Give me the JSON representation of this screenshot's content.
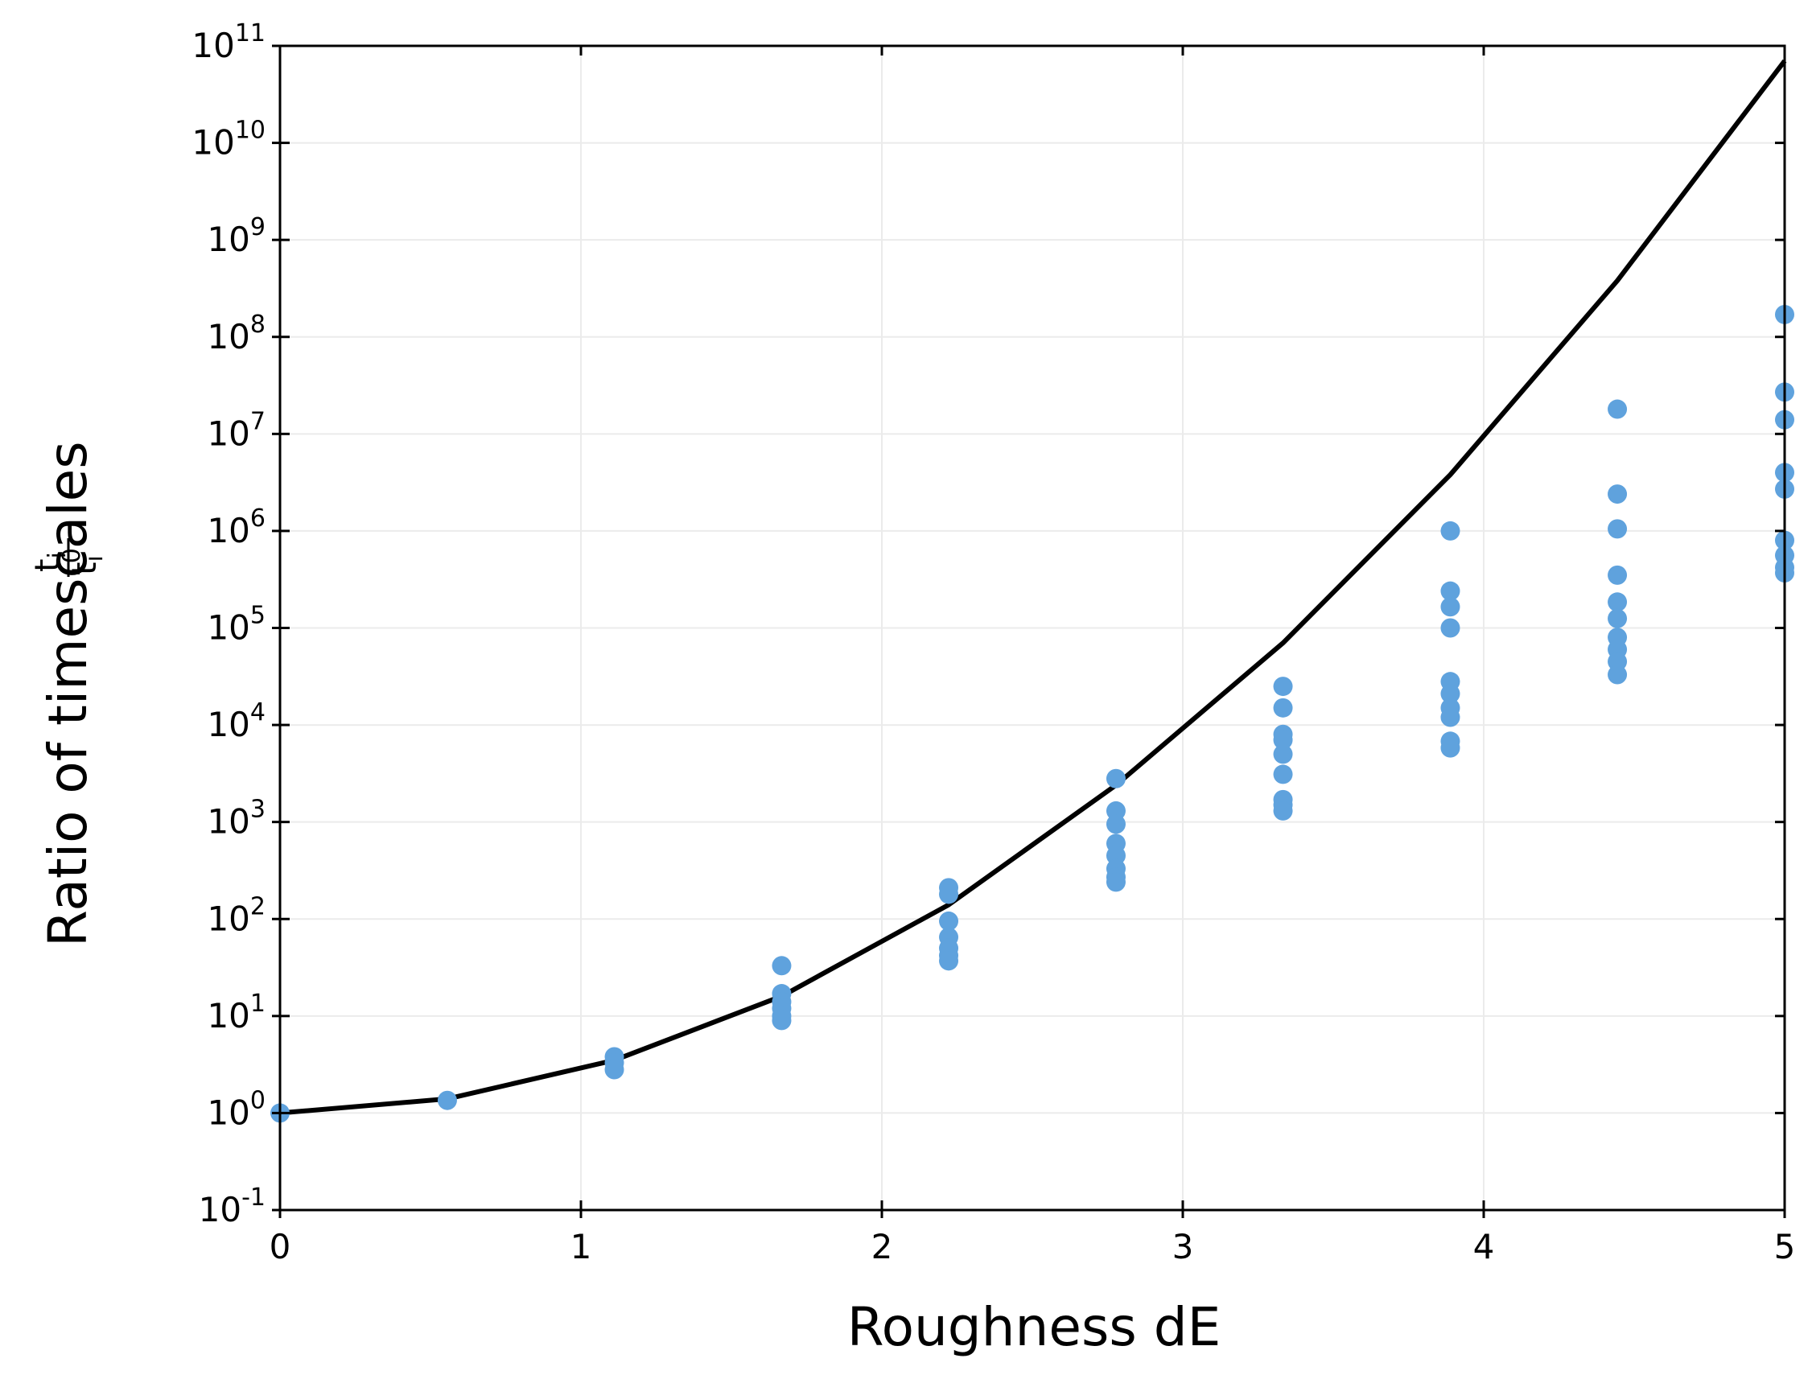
{
  "chart_data": {
    "type": "scatter",
    "xlabel": "Roughness dE",
    "ylabel": "Ratio of timescales",
    "ylabel_fraction": {
      "numerator": "t",
      "numerator_sub": "i",
      "denominator": "t",
      "denominator_sub": "i",
      "denominator_sup": "0"
    },
    "xlim": [
      0,
      5
    ],
    "ylim_log10": [
      -1,
      11
    ],
    "yscale": "log",
    "grid": true,
    "x_ticks": [
      "0",
      "1",
      "2",
      "3",
      "4",
      "5"
    ],
    "y_ticks": [
      {
        "base": "10",
        "exp": "-1"
      },
      {
        "base": "10",
        "exp": "0"
      },
      {
        "base": "10",
        "exp": "1"
      },
      {
        "base": "10",
        "exp": "2"
      },
      {
        "base": "10",
        "exp": "3"
      },
      {
        "base": "10",
        "exp": "4"
      },
      {
        "base": "10",
        "exp": "5"
      },
      {
        "base": "10",
        "exp": "6"
      },
      {
        "base": "10",
        "exp": "7"
      },
      {
        "base": "10",
        "exp": "8"
      },
      {
        "base": "10",
        "exp": "9"
      },
      {
        "base": "10",
        "exp": "10"
      },
      {
        "base": "10",
        "exp": "11"
      }
    ],
    "colors": {
      "points": "#5fa2dd",
      "line": "#000000",
      "grid": "#ebebeb",
      "axis": "#000000"
    },
    "line": {
      "x": [
        0,
        0.556,
        1.111,
        1.667,
        2.222,
        2.778,
        3.333,
        3.889,
        4.444,
        5.0
      ],
      "y": [
        1,
        1.4,
        3.5,
        16,
        140,
        2400,
        70000,
        3800000,
        380000000,
        70000000000
      ]
    },
    "scatter": [
      {
        "x": 0,
        "y": [
          1
        ]
      },
      {
        "x": 0.556,
        "y": [
          1.35
        ]
      },
      {
        "x": 1.111,
        "y": [
          3.8,
          3.3,
          2.8
        ]
      },
      {
        "x": 1.667,
        "y": [
          33,
          17,
          14,
          12,
          10,
          9
        ]
      },
      {
        "x": 2.222,
        "y": [
          210,
          180,
          95,
          65,
          50,
          42,
          37
        ]
      },
      {
        "x": 2.778,
        "y": [
          2800,
          1300,
          950,
          600,
          450,
          330,
          270,
          240
        ]
      },
      {
        "x": 3.333,
        "y": [
          25000,
          15000,
          8000,
          7000,
          5000,
          3100,
          1700,
          1500,
          1300
        ]
      },
      {
        "x": 3.889,
        "y": [
          1000000,
          240000,
          165000,
          100000,
          28000,
          21000,
          15000,
          12000,
          6800,
          5800
        ]
      },
      {
        "x": 4.444,
        "y": [
          18000000,
          2400000,
          1050000,
          350000,
          185000,
          125000,
          80000,
          60000,
          45000,
          33000
        ]
      },
      {
        "x": 5.0,
        "y": [
          170000000,
          27000000,
          14000000,
          4000000,
          2700000,
          800000,
          560000,
          420000,
          370000
        ]
      }
    ]
  }
}
